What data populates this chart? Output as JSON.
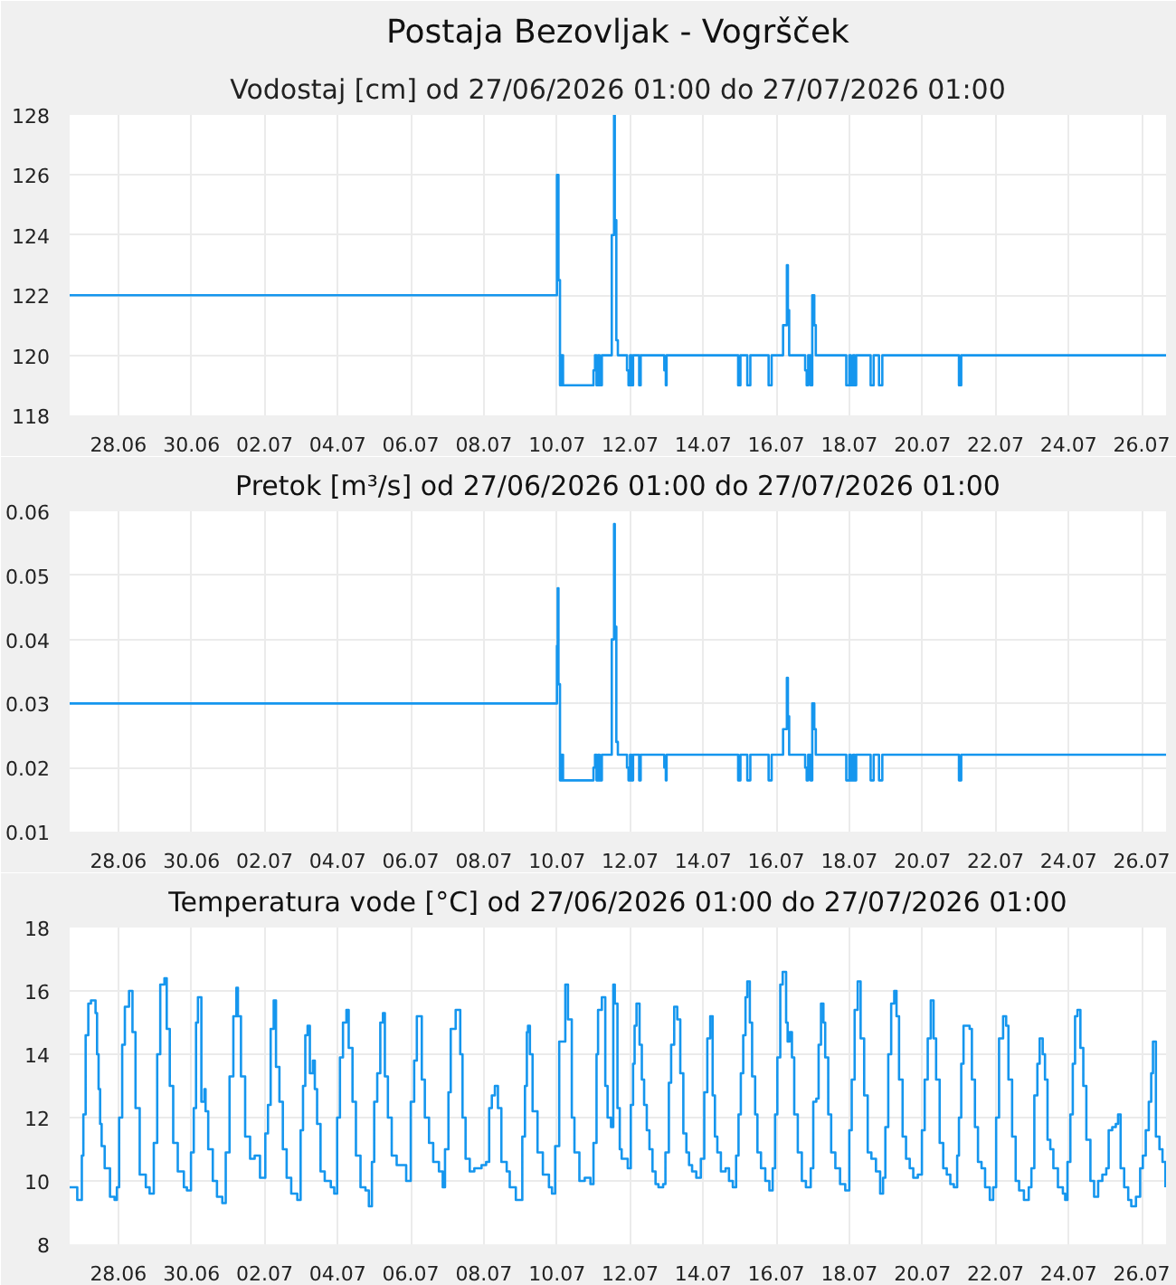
{
  "chart_data": [
    {
      "type": "step",
      "title": "Postaja Bezovljak - Vogršček",
      "subtitle": "Vodostaj [cm] od 27/06/2026 01:00 do 27/07/2026 01:00",
      "x": [
        "2026-06-26T16:00",
        "2026-07-10T00:00",
        "2026-07-10T01:00",
        "2026-07-10T02:00",
        "2026-07-10T03:00",
        "2026-07-10T04:00",
        "2026-07-11T00:00",
        "2026-07-11T01:00",
        "2026-07-11T02:00",
        "2026-07-11T03:00",
        "2026-07-11T04:00",
        "2026-07-11T05:30",
        "2026-07-11T12:00",
        "2026-07-11T13:30",
        "2026-07-11T14:00",
        "2026-07-11T15:00",
        "2026-07-11T16:00",
        "2026-07-11T22:00",
        "2026-07-11T23:00",
        "2026-07-12T00:00",
        "2026-07-12T01:00",
        "2026-07-12T02:00",
        "2026-07-12T06:00",
        "2026-07-12T07:00",
        "2026-07-12T22:30",
        "2026-07-12T23:30",
        "2026-07-13T00:00",
        "2026-07-14T23:00",
        "2026-07-15T00:30",
        "2026-07-15T05:00",
        "2026-07-15T07:00",
        "2026-07-15T19:00",
        "2026-07-15T21:00",
        "2026-07-16T04:30",
        "2026-07-16T07:00",
        "2026-07-16T07:40",
        "2026-07-16T08:30",
        "2026-07-16T19:00",
        "2026-07-16T20:00",
        "2026-07-16T21:00",
        "2026-07-16T22:30",
        "2026-07-16T23:40",
        "2026-07-17T01:00",
        "2026-07-17T02:00",
        "2026-07-17T22:00",
        "2026-07-18T00:00",
        "2026-07-18T01:00",
        "2026-07-18T02:30",
        "2026-07-18T03:30",
        "2026-07-18T04:30",
        "2026-07-18T14:00",
        "2026-07-18T16:00",
        "2026-07-18T19:30",
        "2026-07-18T21:40",
        "2026-07-21T00:00",
        "2026-07-21T01:30",
        "2026-07-26T16:00"
      ],
      "series": [
        {
          "color": "#1596ee",
          "values": [
            122,
            126,
            122.5,
            119,
            120,
            119,
            119.5,
            120,
            119,
            120,
            119,
            120,
            124,
            128,
            124.5,
            120.5,
            120,
            119.5,
            119,
            120,
            119,
            120,
            119,
            120,
            119.5,
            119,
            120,
            119,
            120,
            119,
            120,
            119,
            120,
            121,
            123,
            121.5,
            120,
            119.5,
            119,
            120,
            119,
            122,
            121,
            120,
            119,
            120,
            119,
            120,
            119,
            120,
            119,
            120,
            119,
            120,
            119,
            120,
            120
          ]
        }
      ],
      "xlim": [
        "2026-06-26T16:00",
        "2026-07-26T16:00"
      ],
      "xticks": [
        {
          "value": "2026-06-28",
          "label": "28.06"
        },
        {
          "value": "2026-06-30",
          "label": "30.06"
        },
        {
          "value": "2026-07-02",
          "label": "02.07"
        },
        {
          "value": "2026-07-04",
          "label": "04.07"
        },
        {
          "value": "2026-07-06",
          "label": "06.07"
        },
        {
          "value": "2026-07-08",
          "label": "08.07"
        },
        {
          "value": "2026-07-10",
          "label": "10.07"
        },
        {
          "value": "2026-07-12",
          "label": "12.07"
        },
        {
          "value": "2026-07-14",
          "label": "14.07"
        },
        {
          "value": "2026-07-16",
          "label": "16.07"
        },
        {
          "value": "2026-07-18",
          "label": "18.07"
        },
        {
          "value": "2026-07-20",
          "label": "20.07"
        },
        {
          "value": "2026-07-22",
          "label": "22.07"
        },
        {
          "value": "2026-07-24",
          "label": "24.07"
        },
        {
          "value": "2026-07-26",
          "label": "26.07"
        }
      ],
      "ylim": [
        118,
        128
      ],
      "yticks": [
        118,
        120,
        122,
        124,
        126,
        128
      ],
      "grid": true
    },
    {
      "type": "step",
      "title": "Pretok [m³/s] od 27/06/2026 01:00 do 27/07/2026 01:00",
      "x": [
        "2026-06-26T16:00",
        "2026-07-10T00:00",
        "2026-07-10T00:30",
        "2026-07-10T01:00",
        "2026-07-10T02:00",
        "2026-07-10T03:00",
        "2026-07-10T04:00",
        "2026-07-11T00:00",
        "2026-07-11T01:00",
        "2026-07-11T02:00",
        "2026-07-11T03:00",
        "2026-07-11T04:00",
        "2026-07-11T05:30",
        "2026-07-11T12:00",
        "2026-07-11T13:30",
        "2026-07-11T14:00",
        "2026-07-11T15:00",
        "2026-07-11T16:00",
        "2026-07-11T22:00",
        "2026-07-11T23:00",
        "2026-07-12T00:00",
        "2026-07-12T01:00",
        "2026-07-12T02:00",
        "2026-07-12T06:00",
        "2026-07-12T07:00",
        "2026-07-12T22:30",
        "2026-07-12T23:30",
        "2026-07-13T00:00",
        "2026-07-14T23:00",
        "2026-07-15T00:30",
        "2026-07-15T05:00",
        "2026-07-15T07:00",
        "2026-07-15T19:00",
        "2026-07-15T21:00",
        "2026-07-16T04:30",
        "2026-07-16T07:00",
        "2026-07-16T07:40",
        "2026-07-16T08:30",
        "2026-07-16T19:00",
        "2026-07-16T20:00",
        "2026-07-16T21:00",
        "2026-07-16T22:30",
        "2026-07-16T23:40",
        "2026-07-17T01:00",
        "2026-07-17T02:00",
        "2026-07-17T22:00",
        "2026-07-18T00:00",
        "2026-07-18T01:00",
        "2026-07-18T02:30",
        "2026-07-18T03:30",
        "2026-07-18T04:30",
        "2026-07-18T14:00",
        "2026-07-18T16:00",
        "2026-07-18T19:30",
        "2026-07-18T21:40",
        "2026-07-21T00:00",
        "2026-07-21T01:30",
        "2026-07-26T16:00"
      ],
      "series": [
        {
          "color": "#1596ee",
          "values": [
            0.03,
            0.039,
            0.048,
            0.033,
            0.018,
            0.022,
            0.018,
            0.02,
            0.022,
            0.018,
            0.022,
            0.018,
            0.022,
            0.04,
            0.058,
            0.042,
            0.024,
            0.022,
            0.02,
            0.018,
            0.022,
            0.018,
            0.022,
            0.018,
            0.022,
            0.02,
            0.018,
            0.022,
            0.018,
            0.022,
            0.018,
            0.022,
            0.018,
            0.022,
            0.026,
            0.034,
            0.028,
            0.022,
            0.02,
            0.018,
            0.022,
            0.018,
            0.03,
            0.026,
            0.022,
            0.018,
            0.022,
            0.018,
            0.022,
            0.018,
            0.022,
            0.018,
            0.022,
            0.018,
            0.022,
            0.018,
            0.022,
            0.022
          ]
        }
      ],
      "xlim": [
        "2026-06-26T16:00",
        "2026-07-26T16:00"
      ],
      "xticks": [
        {
          "value": "2026-06-28",
          "label": "28.06"
        },
        {
          "value": "2026-06-30",
          "label": "30.06"
        },
        {
          "value": "2026-07-02",
          "label": "02.07"
        },
        {
          "value": "2026-07-04",
          "label": "04.07"
        },
        {
          "value": "2026-07-06",
          "label": "06.07"
        },
        {
          "value": "2026-07-08",
          "label": "08.07"
        },
        {
          "value": "2026-07-10",
          "label": "10.07"
        },
        {
          "value": "2026-07-12",
          "label": "12.07"
        },
        {
          "value": "2026-07-14",
          "label": "14.07"
        },
        {
          "value": "2026-07-16",
          "label": "16.07"
        },
        {
          "value": "2026-07-18",
          "label": "18.07"
        },
        {
          "value": "2026-07-20",
          "label": "20.07"
        },
        {
          "value": "2026-07-22",
          "label": "22.07"
        },
        {
          "value": "2026-07-24",
          "label": "24.07"
        },
        {
          "value": "2026-07-26",
          "label": "26.07"
        }
      ],
      "ylim": [
        0.01,
        0.06
      ],
      "yticks": [
        0.01,
        0.02,
        0.03,
        0.04,
        0.05,
        0.06
      ],
      "grid": true
    },
    {
      "type": "step",
      "title": "Temperatura vode [°C] od 27/06/2026 01:00 do 27/07/2026 01:00",
      "x": [
        "2026-06-26T16:00",
        "2026-06-26T21:00",
        "2026-06-27T00:00",
        "2026-06-27T01:00",
        "2026-06-27T02:30",
        "2026-06-27T04:15",
        "2026-06-27T06:00",
        "2026-06-27T09:00",
        "2026-06-27T10:00",
        "2026-06-27T11:00",
        "2026-06-27T12:00",
        "2026-06-27T13:00",
        "2026-06-27T15:00",
        "2026-06-27T18:30",
        "2026-06-27T21:30",
        "2026-06-27T23:00",
        "2026-06-28T00:30",
        "2026-06-28T02:30",
        "2026-06-28T04:15",
        "2026-06-28T07:00",
        "2026-06-28T09:15",
        "2026-06-28T11:15",
        "2026-06-28T14:00",
        "2026-06-28T18:00",
        "2026-06-28T20:30",
        "2026-06-28T23:15",
        "2026-06-29T01:30",
        "2026-06-29T03:30",
        "2026-06-29T06:15",
        "2026-06-29T07:45",
        "2026-06-29T09:45",
        "2026-06-29T12:00",
        "2026-06-29T15:00",
        "2026-06-29T19:00",
        "2026-06-29T21:00",
        "2026-06-29T23:40",
        "2026-06-30T01:30",
        "2026-06-30T03:00",
        "2026-06-30T04:15",
        "2026-06-30T06:30",
        "2026-06-30T08:30",
        "2026-06-30T09:15",
        "2026-06-30T11:00",
        "2026-06-30T14:00",
        "2026-06-30T16:45",
        "2026-06-30T20:15",
        "2026-06-30T22:30",
        "2026-07-01T01:00",
        "2026-07-01T03:30",
        "2026-07-01T05:30",
        "2026-07-01T06:30",
        "2026-07-01T08:30",
        "2026-07-01T11:15",
        "2026-07-01T14:30",
        "2026-07-01T17:30",
        "2026-07-01T21:00",
        "2026-07-02T00:30",
        "2026-07-02T02:15",
        "2026-07-02T04:00",
        "2026-07-02T06:00",
        "2026-07-02T07:30",
        "2026-07-02T09:45",
        "2026-07-02T12:00",
        "2026-07-02T14:30",
        "2026-07-02T17:30",
        "2026-07-02T21:30",
        "2026-07-02T23:40",
        "2026-07-03T01:15",
        "2026-07-03T02:45",
        "2026-07-03T04:15",
        "2026-07-03T05:45",
        "2026-07-03T07:45",
        "2026-07-03T09:00",
        "2026-07-03T10:30",
        "2026-07-03T12:45",
        "2026-07-03T15:30",
        "2026-07-03T19:30",
        "2026-07-03T21:45",
        "2026-07-03T23:40",
        "2026-07-04T01:30",
        "2026-07-04T03:30",
        "2026-07-04T05:45",
        "2026-07-04T07:15",
        "2026-07-04T09:45",
        "2026-07-04T12:00",
        "2026-07-04T15:00",
        "2026-07-04T18:15",
        "2026-07-04T20:30",
        "2026-07-04T22:30",
        "2026-07-05T00:00",
        "2026-07-05T02:00",
        "2026-07-05T04:00",
        "2026-07-05T05:45",
        "2026-07-05T07:00",
        "2026-07-05T09:00",
        "2026-07-05T11:30",
        "2026-07-05T14:45",
        "2026-07-05T17:45",
        "2026-07-05T21:00",
        "2026-07-06T00:00",
        "2026-07-06T02:15",
        "2026-07-06T04:00",
        "2026-07-06T05:30",
        "2026-07-06T07:15",
        "2026-07-06T09:15",
        "2026-07-06T12:00",
        "2026-07-06T14:45",
        "2026-07-06T18:30",
        "2026-07-06T21:00",
        "2026-07-06T22:30",
        "2026-07-07T00:45",
        "2026-07-07T02:15",
        "2026-07-07T05:30",
        "2026-07-07T08:30",
        "2026-07-07T10:00",
        "2026-07-07T12:00",
        "2026-07-07T14:45",
        "2026-07-07T17:45",
        "2026-07-07T22:30",
        "2026-07-08T01:30",
        "2026-07-08T03:30",
        "2026-07-08T05:15",
        "2026-07-08T07:15",
        "2026-07-08T09:15",
        "2026-07-08T11:30",
        "2026-07-08T15:00",
        "2026-07-08T17:00",
        "2026-07-08T21:00",
        "2026-07-09T01:15",
        "2026-07-09T03:00",
        "2026-07-09T04:15",
        "2026-07-09T05:00",
        "2026-07-09T06:15",
        "2026-07-09T08:00",
        "2026-07-09T11:15",
        "2026-07-09T14:45",
        "2026-07-09T18:45",
        "2026-07-09T20:45",
        "2026-07-09T22:50",
        "2026-07-10T01:30",
        "2026-07-10T05:30",
        "2026-07-10T07:15",
        "2026-07-10T09:45",
        "2026-07-10T11:30",
        "2026-07-10T14:45",
        "2026-07-10T18:15",
        "2026-07-10T22:00",
        "2026-07-11T00:00",
        "2026-07-11T02:00",
        "2026-07-11T03:00",
        "2026-07-11T05:30",
        "2026-07-11T07:45",
        "2026-07-11T09:15",
        "2026-07-11T11:30",
        "2026-07-11T13:00",
        "2026-07-11T14:00",
        "2026-07-11T15:45",
        "2026-07-11T17:15",
        "2026-07-11T18:30",
        "2026-07-11T22:30",
        "2026-07-12T00:30",
        "2026-07-12T02:00",
        "2026-07-12T03:00",
        "2026-07-12T04:15",
        "2026-07-12T05:00",
        "2026-07-12T06:15",
        "2026-07-12T07:45",
        "2026-07-12T09:15",
        "2026-07-12T11:00",
        "2026-07-12T12:45",
        "2026-07-12T14:45",
        "2026-07-12T16:45",
        "2026-07-12T18:40",
        "2026-07-12T21:45",
        "2026-07-12T23:15",
        "2026-07-13T01:30",
        "2026-07-13T03:00",
        "2026-07-13T05:00",
        "2026-07-13T07:00",
        "2026-07-13T09:00",
        "2026-07-13T11:00",
        "2026-07-13T13:00",
        "2026-07-13T14:45",
        "2026-07-13T16:45",
        "2026-07-13T19:30",
        "2026-07-13T22:30",
        "2026-07-14T00:45",
        "2026-07-14T02:45",
        "2026-07-14T04:40",
        "2026-07-14T06:15",
        "2026-07-14T07:45",
        "2026-07-14T09:20",
        "2026-07-14T11:40",
        "2026-07-14T14:45",
        "2026-07-14T17:00",
        "2026-07-14T19:30",
        "2026-07-14T21:40",
        "2026-07-14T23:15",
        "2026-07-15T00:45",
        "2026-07-15T02:20",
        "2026-07-15T03:50",
        "2026-07-15T05:00",
        "2026-07-15T06:40",
        "2026-07-15T08:10",
        "2026-07-15T10:10",
        "2026-07-15T11:40",
        "2026-07-15T14:00",
        "2026-07-15T16:50",
        "2026-07-15T19:30",
        "2026-07-15T21:40",
        "2026-07-15T23:15",
        "2026-07-16T00:45",
        "2026-07-16T02:40",
        "2026-07-16T04:15",
        "2026-07-16T06:30",
        "2026-07-16T07:30",
        "2026-07-16T08:50",
        "2026-07-16T10:20",
        "2026-07-16T11:50",
        "2026-07-16T14:10",
        "2026-07-16T16:50",
        "2026-07-16T19:30",
        "2026-07-16T22:40",
        "2026-07-17T00:20",
        "2026-07-17T02:20",
        "2026-07-17T03:50",
        "2026-07-17T05:25",
        "2026-07-17T07:00",
        "2026-07-17T08:10",
        "2026-07-17T10:10",
        "2026-07-17T12:05",
        "2026-07-17T14:50",
        "2026-07-17T17:55",
        "2026-07-17T21:20",
        "2026-07-18T00:00",
        "2026-07-18T01:35",
        "2026-07-18T03:30",
        "2026-07-18T05:30",
        "2026-07-18T07:25",
        "2026-07-18T09:45",
        "2026-07-18T12:05",
        "2026-07-18T14:30",
        "2026-07-18T17:30",
        "2026-07-18T20:15",
        "2026-07-18T22:10",
        "2026-07-18T23:40",
        "2026-07-19T01:35",
        "2026-07-19T03:30",
        "2026-07-19T05:30",
        "2026-07-19T07:00",
        "2026-07-19T08:40",
        "2026-07-19T11:00",
        "2026-07-19T13:15",
        "2026-07-19T15:40",
        "2026-07-19T18:00",
        "2026-07-19T21:00",
        "2026-07-19T23:40",
        "2026-07-20T01:30",
        "2026-07-20T03:30",
        "2026-07-20T05:30",
        "2026-07-20T07:20",
        "2026-07-20T09:00",
        "2026-07-20T11:20",
        "2026-07-20T13:40",
        "2026-07-20T16:00",
        "2026-07-20T18:20",
        "2026-07-20T20:40",
        "2026-07-20T22:50",
        "2026-07-21T00:00",
        "2026-07-21T01:30",
        "2026-07-21T03:00",
        "2026-07-21T05:30",
        "2026-07-21T07:00",
        "2026-07-21T08:30",
        "2026-07-21T10:30",
        "2026-07-21T12:30",
        "2026-07-21T14:50",
        "2026-07-21T17:10",
        "2026-07-21T20:15",
        "2026-07-21T22:30",
        "2026-07-22T00:25",
        "2026-07-22T02:20",
        "2026-07-22T05:00",
        "2026-07-22T07:00",
        "2026-07-22T08:30",
        "2026-07-22T10:55",
        "2026-07-22T13:15",
        "2026-07-22T15:30",
        "2026-07-22T18:40",
        "2026-07-22T21:50",
        "2026-07-22T23:35",
        "2026-07-23T01:30",
        "2026-07-23T03:30",
        "2026-07-23T05:00",
        "2026-07-23T07:00",
        "2026-07-23T08:30",
        "2026-07-23T10:10",
        "2026-07-23T12:00",
        "2026-07-23T14:00",
        "2026-07-23T17:00",
        "2026-07-23T20:15",
        "2026-07-23T21:45",
        "2026-07-23T23:15",
        "2026-07-24T01:10",
        "2026-07-24T02:45",
        "2026-07-24T04:15",
        "2026-07-24T05:50",
        "2026-07-24T07:45",
        "2026-07-24T09:40",
        "2026-07-24T11:40",
        "2026-07-24T14:20",
        "2026-07-24T16:45",
        "2026-07-24T19:25",
        "2026-07-24T22:10",
        "2026-07-25T00:45",
        "2026-07-25T02:20",
        "2026-07-25T04:40",
        "2026-07-25T07:00",
        "2026-07-25T08:30",
        "2026-07-25T10:10",
        "2026-07-25T12:30",
        "2026-07-25T15:10",
        "2026-07-25T17:10",
        "2026-07-25T20:15",
        "2026-07-25T23:00",
        "2026-07-26T00:45",
        "2026-07-26T02:40",
        "2026-07-26T04:40",
        "2026-07-26T06:15",
        "2026-07-26T07:25",
        "2026-07-26T09:20",
        "2026-07-26T11:40",
        "2026-07-26T13:40",
        "2026-07-26T15:35"
      ],
      "series": [
        {
          "color": "#1596ee",
          "values": [
            9.8,
            9.4,
            10.8,
            12.1,
            14.6,
            15.6,
            15.7,
            15.3,
            14.0,
            12.9,
            11.8,
            11.1,
            10.4,
            9.5,
            9.4,
            9.8,
            12.0,
            14.3,
            15.5,
            16.0,
            14.7,
            12.3,
            10.2,
            9.8,
            9.6,
            11.2,
            14.0,
            16.2,
            16.4,
            14.8,
            13.0,
            11.2,
            10.3,
            9.8,
            9.7,
            10.9,
            12.3,
            15.0,
            15.8,
            12.5,
            12.9,
            12.2,
            11.0,
            10.0,
            9.5,
            9.3,
            10.9,
            13.3,
            15.2,
            16.1,
            15.2,
            13.3,
            11.4,
            10.7,
            10.8,
            10.1,
            11.5,
            12.4,
            14.8,
            15.7,
            13.6,
            12.5,
            11.0,
            10.1,
            9.6,
            9.4,
            11.6,
            13.0,
            14.6,
            14.9,
            13.4,
            13.8,
            12.9,
            11.8,
            10.3,
            10.0,
            9.8,
            9.6,
            12.0,
            13.9,
            15.0,
            15.4,
            14.2,
            12.5,
            10.8,
            9.8,
            9.7,
            9.2,
            10.6,
            12.5,
            13.4,
            15.0,
            15.3,
            13.3,
            12.0,
            10.8,
            10.5,
            10.5,
            10.0,
            12.5,
            13.8,
            15.2,
            15.2,
            13.2,
            12.0,
            11.2,
            10.6,
            10.3,
            9.8,
            11.0,
            12.8,
            14.8,
            15.4,
            14.0,
            12.0,
            10.7,
            10.3,
            10.4,
            10.5,
            10.6,
            12.3,
            12.7,
            13.0,
            12.3,
            10.6,
            10.3,
            9.8,
            9.4,
            11.4,
            13.0,
            14.7,
            14.9,
            14.0,
            12.2,
            10.9,
            10.2,
            9.8,
            9.6,
            11.1,
            14.4,
            16.2,
            15.1,
            12.0,
            10.9,
            10.0,
            10.1,
            9.9,
            11.2,
            14.0,
            15.4,
            15.8,
            13.0,
            12.0,
            11.7,
            16.2,
            15.6,
            12.3,
            11.0,
            10.7,
            10.4,
            12.4,
            13.7,
            14.9,
            15.6,
            15.6,
            14.3,
            13.2,
            12.4,
            11.6,
            11.0,
            10.3,
            9.9,
            9.8,
            9.9,
            10.9,
            13.1,
            14.3,
            15.5,
            15.1,
            13.4,
            11.5,
            10.9,
            10.5,
            10.3,
            10.1,
            10.7,
            12.8,
            14.5,
            15.2,
            12.7,
            11.4,
            10.9,
            10.3,
            10.4,
            10.0,
            9.8,
            10.8,
            12.1,
            13.4,
            14.6,
            15.8,
            16.3,
            15.0,
            13.3,
            12.1,
            10.9,
            10.4,
            10.0,
            9.7,
            10.4,
            12.1,
            13.9,
            16.2,
            16.6,
            15.0,
            14.4,
            14.7,
            13.9,
            12.1,
            10.9,
            10.0,
            9.8,
            10.4,
            12.5,
            12.6,
            14.3,
            15.6,
            15.0,
            13.9,
            12.1,
            10.9,
            10.4,
            9.9,
            9.7,
            11.6,
            13.2,
            15.4,
            16.3,
            14.5,
            12.7,
            10.9,
            10.7,
            10.3,
            9.6,
            10.1,
            11.7,
            14.0,
            15.6,
            16.0,
            15.2,
            13.2,
            11.4,
            10.7,
            10.4,
            10.1,
            10.2,
            11.6,
            13.2,
            14.5,
            15.7,
            14.5,
            13.2,
            11.2,
            10.4,
            10.2,
            9.9,
            9.8,
            10.8,
            12.0,
            13.7,
            14.9,
            14.9,
            14.8,
            13.2,
            11.7,
            10.6,
            10.4,
            9.8,
            9.4,
            9.8,
            12.0,
            14.5,
            15.2,
            14.9,
            13.2,
            11.4,
            10.0,
            9.7,
            9.4,
            9.8,
            10.4,
            12.7,
            13.7,
            14.5,
            14.0,
            13.2,
            11.3,
            11.0,
            10.4,
            9.8,
            9.6,
            9.4,
            10.6,
            12.1,
            13.7,
            15.2,
            15.4,
            14.2,
            13.0,
            11.3,
            10.0,
            9.5,
            10.0,
            10.2,
            10.4,
            11.6,
            11.7,
            11.8,
            12.1,
            10.4,
            9.8,
            9.4,
            9.2,
            9.5,
            10.4,
            10.8,
            11.6,
            12.5,
            13.4,
            14.4,
            11.4,
            11.0,
            10.6,
            9.8
          ]
        }
      ],
      "xlim": [
        "2026-06-26T16:00",
        "2026-07-26T16:00"
      ],
      "xticks": [
        {
          "value": "2026-06-28",
          "label": "28.06"
        },
        {
          "value": "2026-06-30",
          "label": "30.06"
        },
        {
          "value": "2026-07-02",
          "label": "02.07"
        },
        {
          "value": "2026-07-04",
          "label": "04.07"
        },
        {
          "value": "2026-07-06",
          "label": "06.07"
        },
        {
          "value": "2026-07-08",
          "label": "08.07"
        },
        {
          "value": "2026-07-10",
          "label": "10.07"
        },
        {
          "value": "2026-07-12",
          "label": "12.07"
        },
        {
          "value": "2026-07-14",
          "label": "14.07"
        },
        {
          "value": "2026-07-16",
          "label": "16.07"
        },
        {
          "value": "2026-07-18",
          "label": "18.07"
        },
        {
          "value": "2026-07-20",
          "label": "20.07"
        },
        {
          "value": "2026-07-22",
          "label": "22.07"
        },
        {
          "value": "2026-07-24",
          "label": "24.07"
        },
        {
          "value": "2026-07-26",
          "label": "26.07"
        }
      ],
      "ylim": [
        8,
        18
      ],
      "yticks": [
        8,
        10,
        12,
        14,
        16,
        18
      ],
      "grid": true
    }
  ]
}
